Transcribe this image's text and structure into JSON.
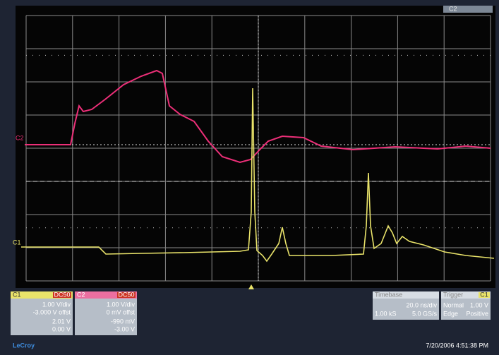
{
  "screen": {
    "top_label": "C2",
    "trace_labels": [
      "C2",
      "C1"
    ]
  },
  "channels": [
    {
      "name": "C1",
      "coupling": "DC50",
      "scale": "1.00 V/div",
      "offset": "-3.000 V offst",
      "meas1": "2.01 V",
      "meas2": "0.00 V"
    },
    {
      "name": "C2",
      "coupling": "DC50",
      "scale": "1.00 V/div",
      "offset": "0 mV offst",
      "meas1": "-990 mV",
      "meas2": "-3.00 V"
    }
  ],
  "timebase": {
    "title": "Timebase",
    "scale": "20.0 ns/div",
    "samples": "1.00 kS",
    "rate": "5.0 GS/s"
  },
  "trigger": {
    "title": "Trigger",
    "source": "C1",
    "mode": "Normal",
    "level": "1.00 V",
    "type": "Edge",
    "slope": "Positive"
  },
  "footer": {
    "brand": "LeCroy",
    "timestamp": "7/20/2006 4:51:38 PM"
  }
}
